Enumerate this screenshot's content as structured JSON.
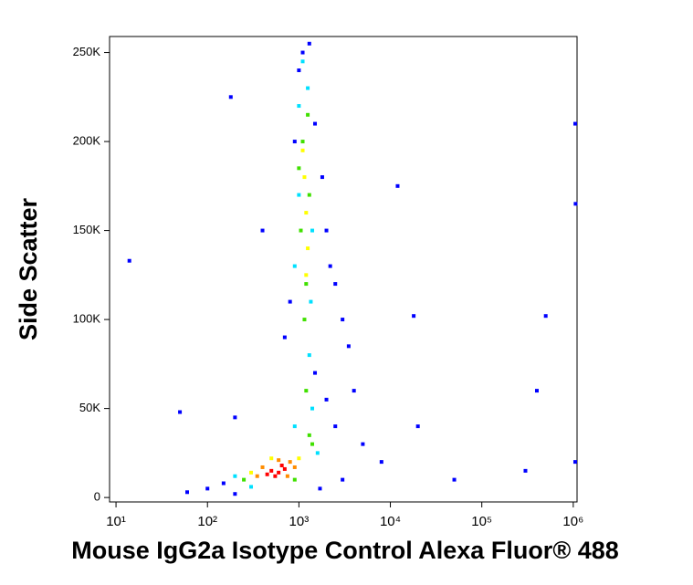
{
  "chart_data": {
    "type": "scatter",
    "xlabel": "Mouse IgG2a Isotype Control Alexa Fluor® 488",
    "ylabel": "Side Scatter",
    "xscale": "log",
    "xlim": [
      8.5,
      1100000
    ],
    "ylim": [
      -2500,
      259000
    ],
    "xticks": [
      {
        "value": 10,
        "label": "10¹"
      },
      {
        "value": 100,
        "label": "10²"
      },
      {
        "value": 1000,
        "label": "10³"
      },
      {
        "value": 10000,
        "label": "10⁴"
      },
      {
        "value": 100000,
        "label": "10⁵"
      },
      {
        "value": 1000000,
        "label": "10⁶"
      }
    ],
    "yticks": [
      0,
      {
        "value": 50000,
        "label": "50K"
      },
      {
        "value": 100000,
        "label": "100K"
      },
      {
        "value": 150000,
        "label": "150K"
      },
      {
        "value": 200000,
        "label": "200K"
      },
      {
        "value": 250000,
        "label": "250K"
      }
    ],
    "series": [
      {
        "color": "#0000ff",
        "x": [
          1300,
          1000,
          900,
          1800,
          2000,
          2500,
          3000,
          700,
          1500,
          4000,
          2500,
          5000,
          150,
          100,
          60,
          200,
          3000,
          8000,
          20000,
          50000,
          300000,
          400000,
          1050000,
          1050000,
          180,
          14,
          50,
          18000,
          12000,
          500000,
          1060000,
          400,
          2000,
          1700,
          200,
          1100,
          1500,
          800,
          2200,
          3500
        ],
        "values": [
          255000,
          240000,
          200000,
          180000,
          150000,
          120000,
          100000,
          90000,
          70000,
          60000,
          40000,
          30000,
          8000,
          5000,
          3000,
          2000,
          10000,
          20000,
          40000,
          10000,
          15000,
          60000,
          20000,
          210000,
          225000,
          133000,
          48000,
          102000,
          175000,
          102000,
          165000,
          150000,
          55000,
          5000,
          45000,
          250000,
          210000,
          110000,
          130000,
          85000
        ]
      },
      {
        "color": "#00e0ff",
        "x": [
          1000,
          1400,
          900,
          1300,
          1400,
          1250,
          200,
          1600,
          1100,
          1000,
          1350,
          300,
          900
        ],
        "values": [
          220000,
          150000,
          130000,
          80000,
          50000,
          230000,
          12000,
          25000,
          245000,
          170000,
          110000,
          6000,
          40000
        ]
      },
      {
        "color": "#40e000",
        "x": [
          1100,
          1300,
          1050,
          1200,
          1300,
          1200,
          250,
          900,
          1150,
          1000,
          1250,
          1400
        ],
        "values": [
          200000,
          170000,
          150000,
          120000,
          35000,
          60000,
          10000,
          10000,
          100000,
          185000,
          215000,
          30000
        ]
      },
      {
        "color": "#ffff00",
        "x": [
          300,
          1000,
          1200,
          1150,
          1250,
          500,
          1100,
          1200
        ],
        "values": [
          14000,
          22000,
          160000,
          180000,
          140000,
          22000,
          195000,
          125000
        ]
      },
      {
        "color": "#ff8c00",
        "x": [
          400,
          800,
          350,
          750,
          600,
          900
        ],
        "values": [
          17000,
          20000,
          12000,
          12000,
          21000,
          17000
        ]
      },
      {
        "color": "#ff0000",
        "x": [
          500,
          600,
          700,
          550,
          650,
          450
        ],
        "values": [
          15000,
          14000,
          16000,
          12000,
          18000,
          13000
        ]
      }
    ]
  }
}
